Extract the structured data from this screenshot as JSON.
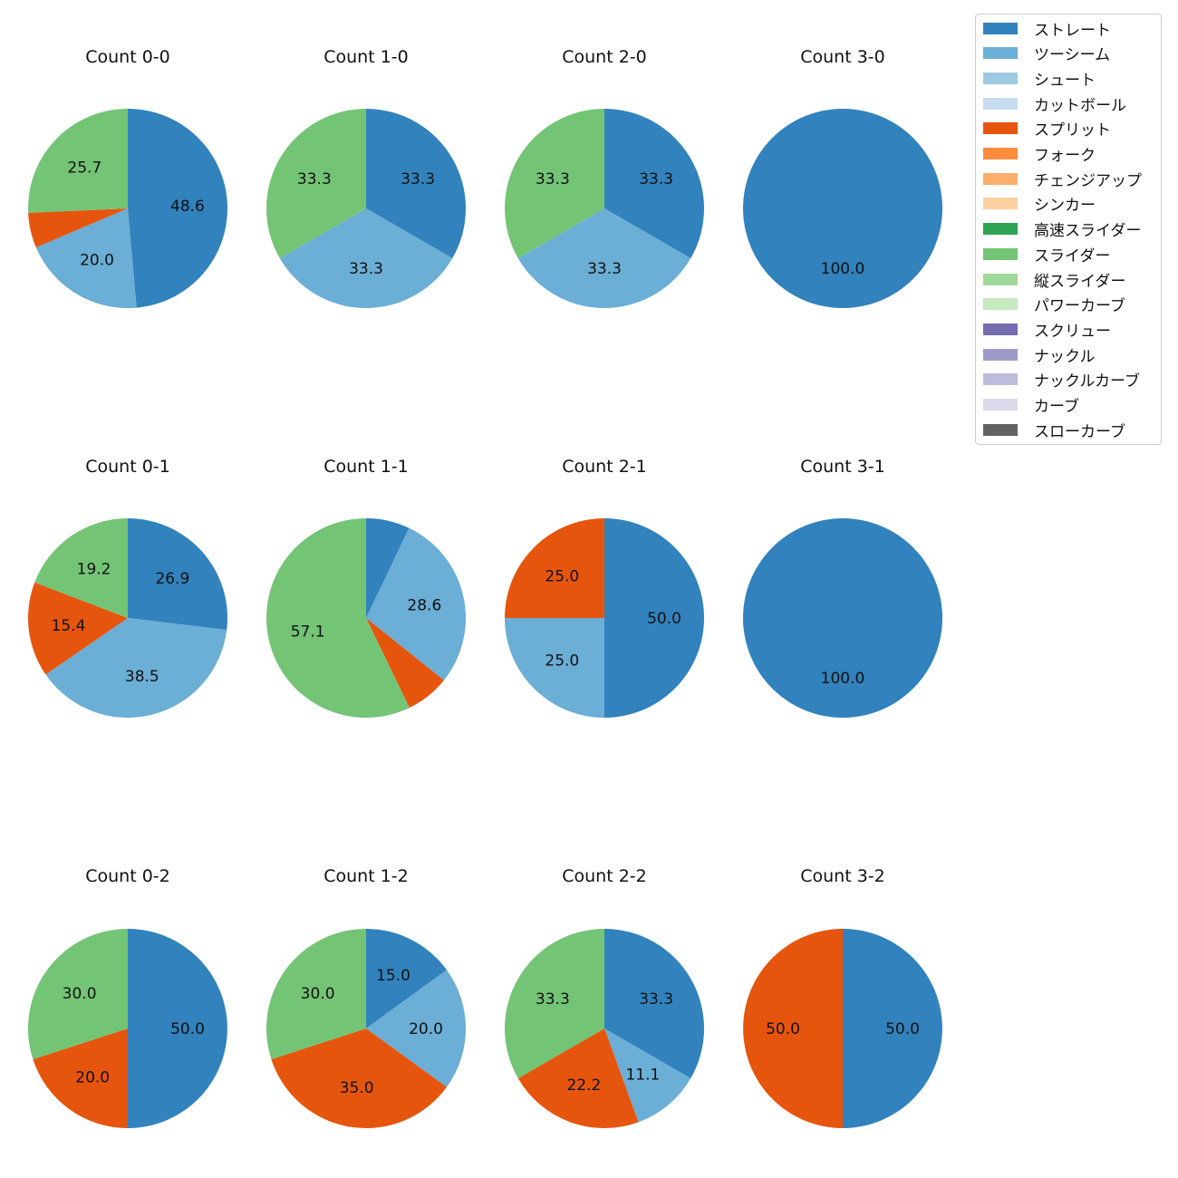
{
  "chart_data": {
    "type": "pie",
    "categories": [
      "ストレート",
      "ツーシーム",
      "シュート",
      "カットボール",
      "スプリット",
      "フォーク",
      "チェンジアップ",
      "シンカー",
      "高速スライダー",
      "スライダー",
      "縦スライダー",
      "パワーカーブ",
      "スクリュー",
      "ナックル",
      "ナックルカーブ",
      "カーブ",
      "スローカーブ"
    ],
    "colors": [
      "#3182bd",
      "#6baed6",
      "#9ecae1",
      "#c6dbef",
      "#e6550d",
      "#fd8d3c",
      "#fdae6b",
      "#fdd0a2",
      "#31a354",
      "#74c476",
      "#a1d99b",
      "#c7e9c0",
      "#756bb1",
      "#9e9ac8",
      "#bcbddc",
      "#dadaeb",
      "#636363"
    ],
    "pies": [
      {
        "title": "Count 0-0",
        "values": {
          "ストレート": 48.6,
          "ツーシーム": 20.0,
          "スプリット": 5.7,
          "スライダー": 25.7
        },
        "labels": {
          "ストレート": "48.6",
          "ツーシーム": "20.0",
          "スライダー": "25.7"
        }
      },
      {
        "title": "Count 1-0",
        "values": {
          "ストレート": 33.3,
          "ツーシーム": 33.3,
          "スライダー": 33.3
        },
        "labels": {
          "ストレート": "33.3",
          "ツーシーム": "33.3",
          "スライダー": "33.3"
        }
      },
      {
        "title": "Count 2-0",
        "values": {
          "ストレート": 33.3,
          "ツーシーム": 33.3,
          "スライダー": 33.3
        },
        "labels": {
          "ストレート": "33.3",
          "ツーシーム": "33.3",
          "スライダー": "33.3"
        }
      },
      {
        "title": "Count 3-0",
        "values": {
          "ストレート": 100.0
        },
        "labels": {
          "ストレート": "100.0"
        }
      },
      {
        "title": "Count 0-1",
        "values": {
          "ストレート": 26.9,
          "ツーシーム": 38.5,
          "スプリット": 15.4,
          "スライダー": 19.2
        },
        "labels": {
          "ストレート": "26.9",
          "ツーシーム": "38.5",
          "スプリット": "15.4",
          "スライダー": "19.2"
        }
      },
      {
        "title": "Count 1-1",
        "values": {
          "ストレート": 7.1,
          "ツーシーム": 28.6,
          "スプリット": 7.1,
          "スライダー": 57.1
        },
        "labels": {
          "ツーシーム": "28.6",
          "スライダー": "57.1"
        }
      },
      {
        "title": "Count 2-1",
        "values": {
          "ストレート": 50.0,
          "ツーシーム": 25.0,
          "スプリット": 25.0
        },
        "labels": {
          "ストレート": "50.0",
          "ツーシーム": "25.0",
          "スプリット": "25.0"
        }
      },
      {
        "title": "Count 3-1",
        "values": {
          "ストレート": 100.0
        },
        "labels": {
          "ストレート": "100.0"
        }
      },
      {
        "title": "Count 0-2",
        "values": {
          "ストレート": 50.0,
          "スプリット": 20.0,
          "スライダー": 30.0
        },
        "labels": {
          "ストレート": "50.0",
          "スプリット": "20.0",
          "スライダー": "30.0"
        }
      },
      {
        "title": "Count 1-2",
        "values": {
          "ストレート": 15.0,
          "ツーシーム": 20.0,
          "スプリット": 35.0,
          "スライダー": 30.0
        },
        "labels": {
          "ストレート": "15.0",
          "ツーシーム": "20.0",
          "スプリット": "35.0",
          "スライダー": "30.0"
        }
      },
      {
        "title": "Count 2-2",
        "values": {
          "ストレート": 33.3,
          "ツーシーム": 11.1,
          "スプリット": 22.2,
          "スライダー": 33.3
        },
        "labels": {
          "ストレート": "33.3",
          "ツーシーム": "11.1",
          "スプリット": "22.2",
          "スライダー": "33.3"
        }
      },
      {
        "title": "Count 3-2",
        "values": {
          "ストレート": 50.0,
          "スプリット": 50.0
        },
        "labels": {
          "ストレート": "50.0",
          "スプリット": "50.0"
        }
      }
    ],
    "legend_position": "upper-right"
  }
}
